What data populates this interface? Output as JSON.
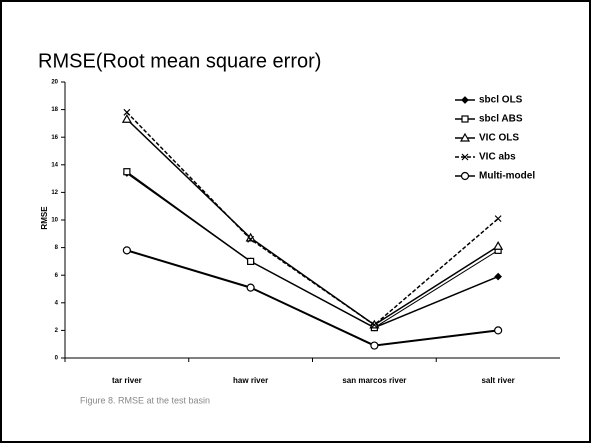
{
  "chart_data": {
    "type": "line",
    "title": "RMSE(Root mean square error)",
    "caption": "Figure 8. RMSE at the test basin",
    "y_label": "RMSE",
    "categories": [
      "tar river",
      "haw river",
      "san marcos river",
      "salt river"
    ],
    "series": [
      {
        "name": "sbcl OLS",
        "color": "#000000",
        "marker": "diamond",
        "dash": "solid",
        "values": [
          13.4,
          7.0,
          2.2,
          5.9
        ]
      },
      {
        "name": "sbcl ABS",
        "color": "#000000",
        "marker": "square",
        "dash": "solid",
        "values": [
          13.5,
          7.0,
          2.2,
          7.8
        ]
      },
      {
        "name": "VIC OLS",
        "color": "#000000",
        "marker": "triangle",
        "dash": "solid",
        "values": [
          17.3,
          8.7,
          2.4,
          8.1
        ]
      },
      {
        "name": "VIC abs",
        "color": "#000000",
        "marker": "x",
        "dash": "dashed",
        "values": [
          17.8,
          8.6,
          2.4,
          10.1
        ]
      },
      {
        "name": "Multi-model",
        "color": "#000000",
        "marker": "circle",
        "dash": "solid",
        "values": [
          7.8,
          5.1,
          0.9,
          2.0
        ]
      }
    ],
    "ylim": [
      0,
      20
    ],
    "yticks": [
      0,
      2,
      4,
      6,
      8,
      10,
      12,
      14,
      16,
      18,
      20
    ],
    "legend": "upper right"
  }
}
